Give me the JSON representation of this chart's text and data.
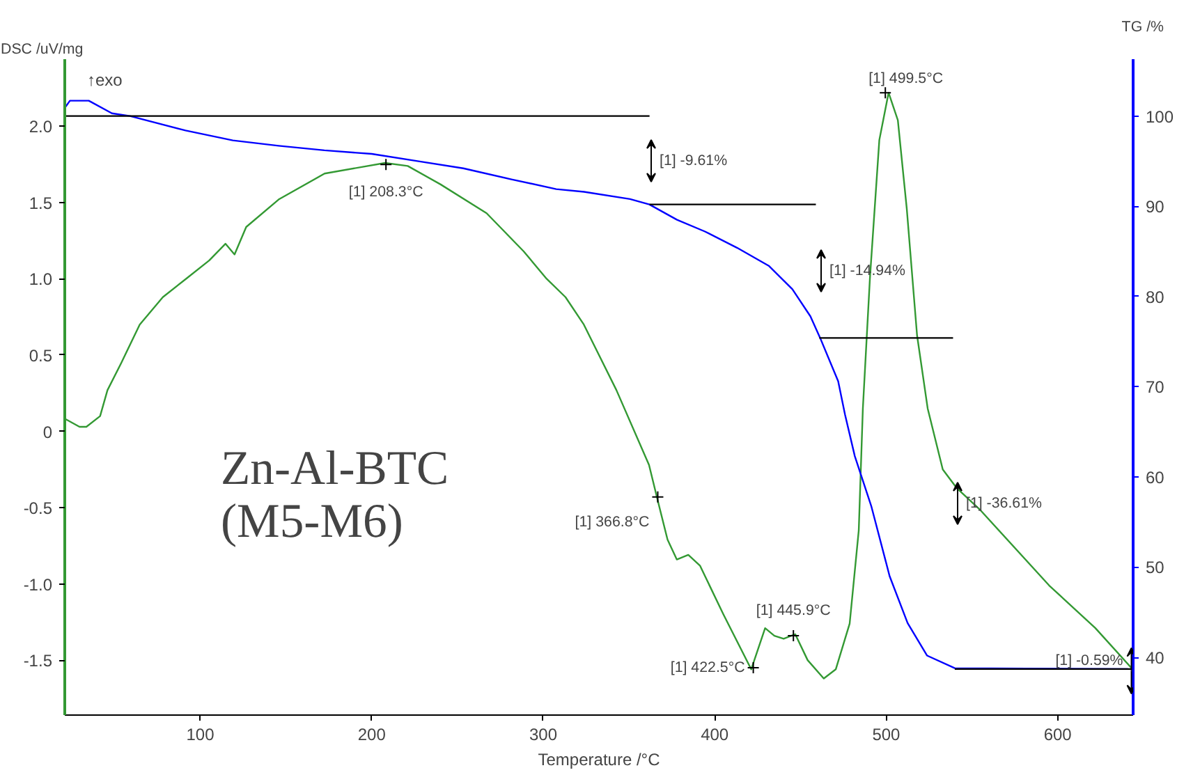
{
  "chart_data": {
    "type": "line",
    "xlabel": "Temperature /°C",
    "ylabel": "DSC /uV/mg",
    "y2label": "TG /%",
    "xlim": [
      21,
      644
    ],
    "xticks": [
      100,
      200,
      300,
      400,
      500,
      600
    ],
    "ylim": [
      -1.86,
      2.44
    ],
    "yticks": [
      {
        "value": -1.5,
        "label": "-1.5"
      },
      {
        "value": -1.0,
        "label": "-1.0"
      },
      {
        "value": -0.5,
        "label": "-0.5"
      },
      0,
      {
        "value": 0.5,
        "label": "0.5"
      },
      {
        "value": 1.0,
        "label": "1.0"
      },
      {
        "value": 1.5,
        "label": "1.5"
      },
      {
        "value": 2.0,
        "label": "2.0"
      }
    ],
    "y2lim": [
      33.6,
      106.3
    ],
    "y2ticks": [
      40,
      50,
      60,
      70,
      80,
      90,
      100
    ],
    "grid": false,
    "series": [
      {
        "color": "#339933",
        "x": [
          21.5,
          29.6,
          33.6,
          41.6,
          45.9,
          54,
          64.7,
          78.2,
          91.7,
          105.2,
          114.7,
          120,
          126.8,
          145.7,
          172.5,
          207.8,
          221,
          240,
          267,
          288.6,
          302,
          313,
          323.7,
          342.7,
          361.7,
          366.5,
          372.5,
          377.9,
          384.6,
          391.4,
          405.1,
          421.3,
          429.4,
          434.8,
          440.2,
          447,
          454.2,
          463.6,
          470.6,
          478.7,
          484,
          486.4,
          490.5,
          496,
          501.4,
          506.8,
          512,
          518,
          524.2,
          533,
          541,
          554.4,
          595,
          622,
          643.7
        ],
        "values": [
          0.08,
          0.03,
          0.03,
          0.1,
          0.27,
          0.45,
          0.7,
          0.88,
          1.0,
          1.12,
          1.23,
          1.16,
          1.34,
          1.52,
          1.69,
          1.76,
          1.74,
          1.62,
          1.43,
          1.18,
          1.0,
          0.88,
          0.7,
          0.27,
          -0.22,
          -0.44,
          -0.71,
          -0.84,
          -0.81,
          -0.88,
          -1.2,
          -1.56,
          -1.29,
          -1.34,
          -1.36,
          -1.33,
          -1.5,
          -1.62,
          -1.56,
          -1.26,
          -0.65,
          0.15,
          1.0,
          1.91,
          2.22,
          2.04,
          1.46,
          0.63,
          0.15,
          -0.25,
          -0.37,
          -0.51,
          -1.01,
          -1.29,
          -1.56
        ]
      },
      {
        "color": "#0000ff",
        "axis": "y2",
        "x": [
          21,
          24,
          35,
          48.5,
          59,
          91.4,
          119,
          145.7,
          172.4,
          200,
          226.7,
          253.4,
          281,
          307.6,
          323.8,
          350.6,
          361.9,
          378,
          394.3,
          413,
          431.5,
          445.3,
          455.8,
          461.5,
          472,
          476,
          481.7,
          491.4,
          502,
          512.5,
          523.8,
          540,
          641
        ],
        "values": [
          100.9,
          101.7,
          101.7,
          100.3,
          100,
          98.4,
          97.3,
          96.7,
          96.2,
          95.8,
          95,
          94.2,
          93,
          91.9,
          91.6,
          90.8,
          90.2,
          88.5,
          87.2,
          85.4,
          83.4,
          80.8,
          77.8,
          75.4,
          70.6,
          66.9,
          62.3,
          56.7,
          49,
          43.8,
          40.2,
          38.8,
          38.7
        ]
      },
      {
        "color": "#000000",
        "axis": "y2",
        "x": [
          21,
          362
        ],
        "values": [
          100,
          100
        ]
      },
      {
        "color": "#000000",
        "axis": "y2",
        "x": [
          362,
          459
        ],
        "values": [
          90.2,
          90.2
        ]
      },
      {
        "color": "#000000",
        "axis": "y2",
        "x": [
          461,
          539
        ],
        "values": [
          75.4,
          75.4
        ]
      },
      {
        "color": "#000000",
        "axis": "y2",
        "x": [
          540,
          644
        ],
        "values": [
          38.7,
          38.7
        ]
      }
    ],
    "annotations": [
      "↑exo",
      "Zn-Al-BTC\n(M5-M6)",
      {
        "text": "[1] 208.3°C",
        "x": 208.3,
        "y": 1.75
      },
      {
        "text": "[1] 499.5°C",
        "x": 499.5,
        "y": 2.22
      },
      {
        "text": "[1] 366.8°C",
        "x": 366.8,
        "y": -0.43
      },
      {
        "text": "[1] 445.9°C",
        "x": 445.9,
        "y": -1.34
      },
      {
        "text": "[1] 422.5°C",
        "x": 422.5,
        "y": -1.55
      },
      "[1] -9.61%",
      "[1] -14.94%",
      "[1] -36.61%",
      {
        "text": "[1] -0.59%",
        "x": 643,
        "y": -1.57
      }
    ]
  }
}
